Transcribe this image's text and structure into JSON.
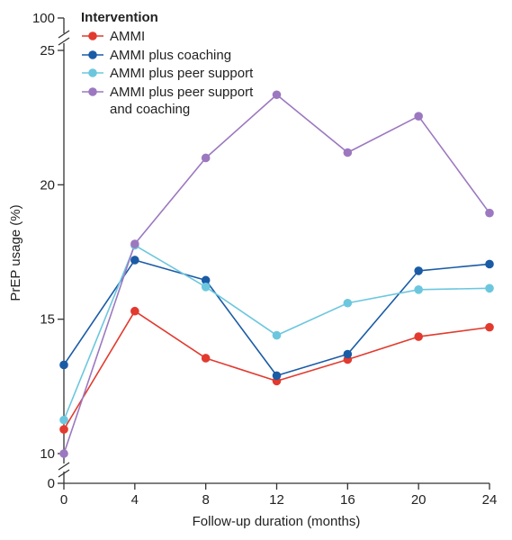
{
  "chart_data": {
    "type": "line",
    "xlabel": "Follow-up duration (months)",
    "ylabel": "PrEP usage (%)",
    "x": [
      0,
      4,
      8,
      12,
      16,
      20,
      24
    ],
    "xlim": [
      0,
      24
    ],
    "y_ticks": [
      10,
      15,
      20,
      25
    ],
    "y_break_ticks": [
      0,
      100
    ],
    "ylim": [
      10,
      25
    ],
    "y_axis_break": true,
    "grid": false,
    "legend": {
      "title": "Intervention",
      "placement": "top-left"
    },
    "series": [
      {
        "name": "AMMI",
        "color": "#e23a2e",
        "values": [
          10.9,
          15.3,
          13.55,
          12.7,
          13.5,
          14.35,
          14.7
        ]
      },
      {
        "name": "AMMI plus coaching",
        "color": "#1a5ba6",
        "values": [
          13.3,
          17.2,
          16.45,
          12.9,
          13.7,
          16.8,
          17.05
        ]
      },
      {
        "name": "AMMI plus peer support",
        "color": "#6cc7de",
        "values": [
          11.25,
          17.75,
          16.2,
          14.4,
          15.6,
          16.1,
          16.15
        ]
      },
      {
        "name": "AMMI plus peer support and coaching",
        "legend_lines": [
          "AMMI plus peer support",
          "and coaching"
        ],
        "color": "#9c78c0",
        "values": [
          10.0,
          17.8,
          21.0,
          23.35,
          21.2,
          22.55,
          18.95
        ]
      }
    ]
  }
}
